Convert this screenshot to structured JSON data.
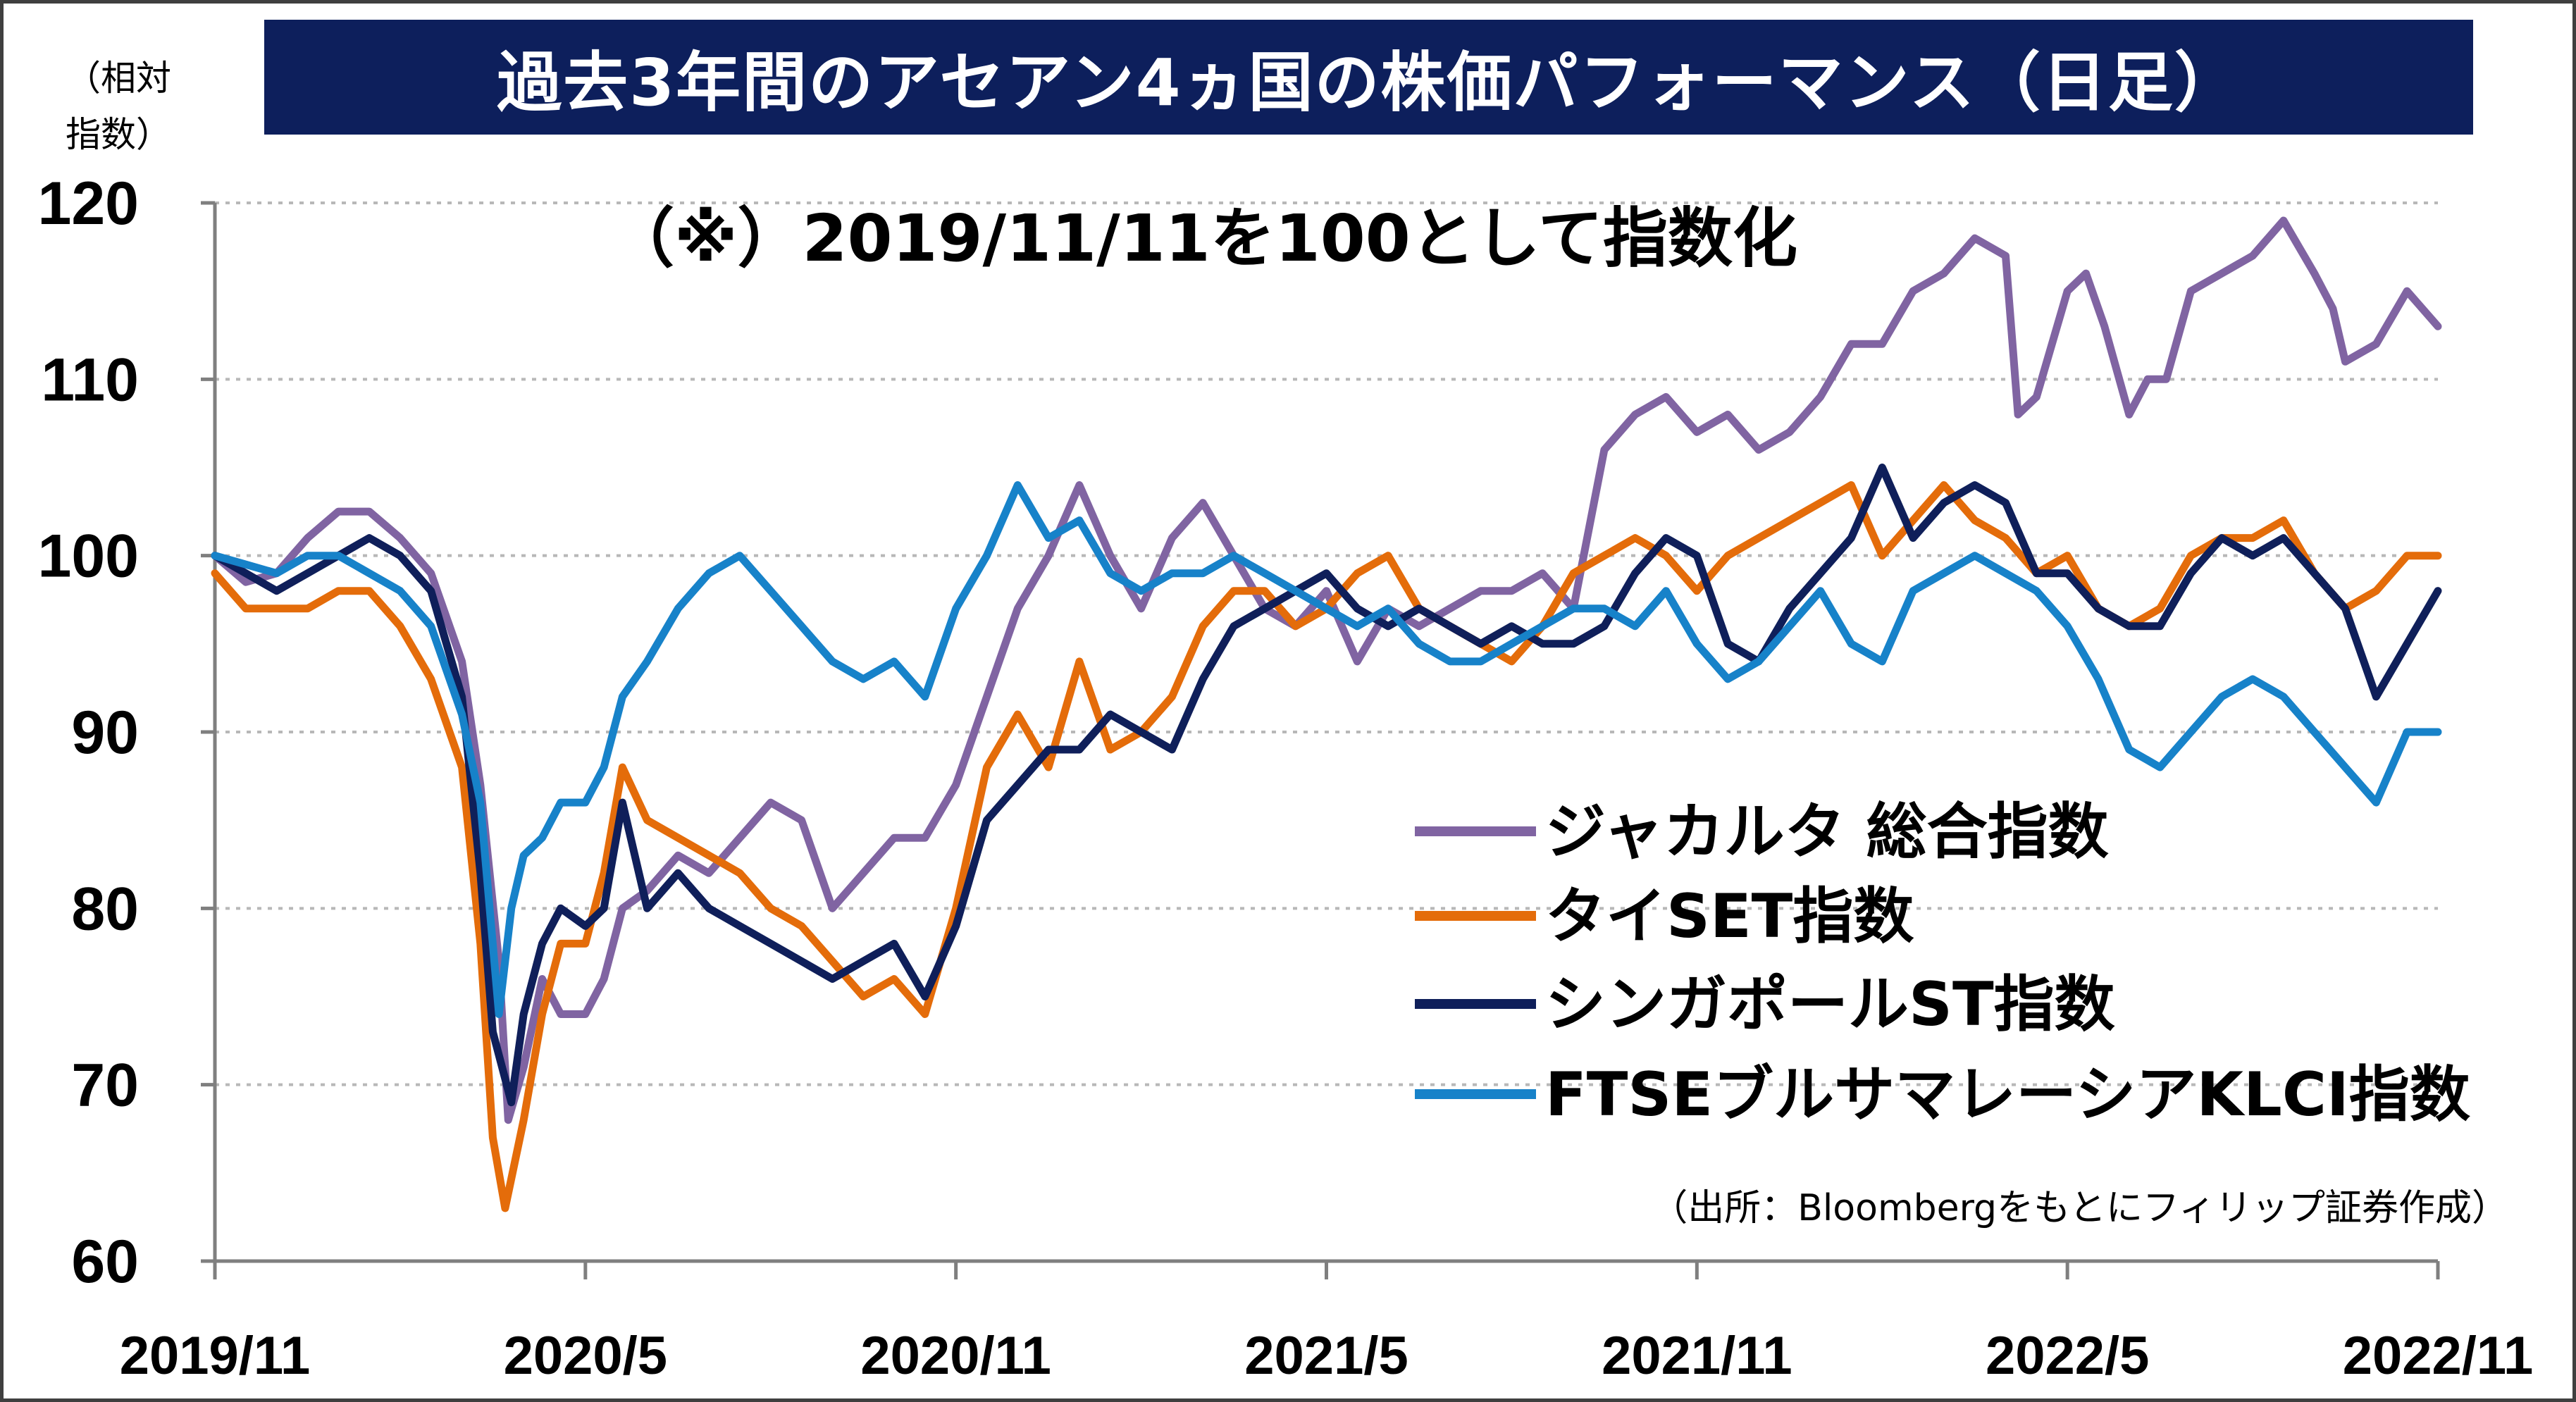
{
  "chart_data": {
    "type": "line",
    "title": "過去3年間のアセアン4ヵ国の株価パフォーマンス（日足）",
    "subtitle": "（※）2019/11/11を100として指数化",
    "ylabel": "（相対指数）",
    "ylabel_lines": [
      "（相対",
      "指数）"
    ],
    "source": "（出所：Bloombergをもとにフィリップ証券作成）",
    "ylim": [
      60,
      120
    ],
    "y_ticks": [
      "120",
      "110",
      "100",
      "90",
      "80",
      "70",
      "60"
    ],
    "x_ticks": [
      "2019/11",
      "2020/5",
      "2020/11",
      "2021/5",
      "2021/11",
      "2022/5",
      "2022/11"
    ],
    "x_tick_months": [
      0,
      6,
      12,
      18,
      24,
      30,
      36
    ],
    "grid": true,
    "legend_position": "lower-right",
    "series": [
      {
        "name": "ジャカルタ 総合指数",
        "color": "#8064a2",
        "points": [
          [
            0,
            100
          ],
          [
            0.5,
            98.5
          ],
          [
            1,
            99
          ],
          [
            1.5,
            101
          ],
          [
            2,
            102.5
          ],
          [
            2.5,
            102.5
          ],
          [
            3,
            101
          ],
          [
            3.5,
            99
          ],
          [
            4,
            94
          ],
          [
            4.3,
            87
          ],
          [
            4.6,
            77
          ],
          [
            4.75,
            68
          ],
          [
            5,
            71
          ],
          [
            5.3,
            76
          ],
          [
            5.6,
            74
          ],
          [
            6,
            74
          ],
          [
            6.3,
            76
          ],
          [
            6.6,
            80
          ],
          [
            7,
            81
          ],
          [
            7.5,
            83
          ],
          [
            8,
            82
          ],
          [
            8.5,
            84
          ],
          [
            9,
            86
          ],
          [
            9.5,
            85
          ],
          [
            10,
            80
          ],
          [
            10.5,
            82
          ],
          [
            11,
            84
          ],
          [
            11.5,
            84
          ],
          [
            12,
            87
          ],
          [
            12.5,
            92
          ],
          [
            13,
            97
          ],
          [
            13.5,
            100
          ],
          [
            14,
            104
          ],
          [
            14.5,
            100
          ],
          [
            15,
            97
          ],
          [
            15.5,
            101
          ],
          [
            16,
            103
          ],
          [
            16.5,
            100
          ],
          [
            17,
            97
          ],
          [
            17.5,
            96
          ],
          [
            18,
            98
          ],
          [
            18.5,
            94
          ],
          [
            19,
            97
          ],
          [
            19.5,
            96
          ],
          [
            20,
            97
          ],
          [
            20.5,
            98
          ],
          [
            21,
            98
          ],
          [
            21.5,
            99
          ],
          [
            22,
            97
          ],
          [
            22.5,
            106
          ],
          [
            23,
            108
          ],
          [
            23.5,
            109
          ],
          [
            24,
            107
          ],
          [
            24.5,
            108
          ],
          [
            25,
            106
          ],
          [
            25.5,
            107
          ],
          [
            26,
            109
          ],
          [
            26.5,
            112
          ],
          [
            27,
            112
          ],
          [
            27.5,
            115
          ],
          [
            28,
            116
          ],
          [
            28.5,
            118
          ],
          [
            29,
            117
          ],
          [
            29.2,
            108
          ],
          [
            29.5,
            109
          ],
          [
            30,
            115
          ],
          [
            30.3,
            116
          ],
          [
            30.6,
            113
          ],
          [
            31,
            108
          ],
          [
            31.3,
            110
          ],
          [
            31.6,
            110
          ],
          [
            32,
            115
          ],
          [
            32.5,
            116
          ],
          [
            33,
            117
          ],
          [
            33.5,
            119
          ],
          [
            34,
            116
          ],
          [
            34.3,
            114
          ],
          [
            34.5,
            111
          ],
          [
            35,
            112
          ],
          [
            35.5,
            115
          ],
          [
            36,
            113
          ]
        ]
      },
      {
        "name": "タイSET指数",
        "color": "#e46c0a",
        "points": [
          [
            0,
            99
          ],
          [
            0.5,
            97
          ],
          [
            1,
            97
          ],
          [
            1.5,
            97
          ],
          [
            2,
            98
          ],
          [
            2.5,
            98
          ],
          [
            3,
            96
          ],
          [
            3.5,
            93
          ],
          [
            4,
            88
          ],
          [
            4.3,
            78
          ],
          [
            4.5,
            67
          ],
          [
            4.7,
            63
          ],
          [
            5,
            68
          ],
          [
            5.3,
            74
          ],
          [
            5.6,
            78
          ],
          [
            6,
            78
          ],
          [
            6.3,
            82
          ],
          [
            6.6,
            88
          ],
          [
            7,
            85
          ],
          [
            7.5,
            84
          ],
          [
            8,
            83
          ],
          [
            8.5,
            82
          ],
          [
            9,
            80
          ],
          [
            9.5,
            79
          ],
          [
            10,
            77
          ],
          [
            10.5,
            75
          ],
          [
            11,
            76
          ],
          [
            11.5,
            74
          ],
          [
            12,
            80
          ],
          [
            12.5,
            88
          ],
          [
            13,
            91
          ],
          [
            13.5,
            88
          ],
          [
            14,
            94
          ],
          [
            14.5,
            89
          ],
          [
            15,
            90
          ],
          [
            15.5,
            92
          ],
          [
            16,
            96
          ],
          [
            16.5,
            98
          ],
          [
            17,
            98
          ],
          [
            17.5,
            96
          ],
          [
            18,
            97
          ],
          [
            18.5,
            99
          ],
          [
            19,
            100
          ],
          [
            19.5,
            97
          ],
          [
            20,
            96
          ],
          [
            20.5,
            95
          ],
          [
            21,
            94
          ],
          [
            21.5,
            96
          ],
          [
            22,
            99
          ],
          [
            22.5,
            100
          ],
          [
            23,
            101
          ],
          [
            23.5,
            100
          ],
          [
            24,
            98
          ],
          [
            24.5,
            100
          ],
          [
            25,
            101
          ],
          [
            25.5,
            102
          ],
          [
            26,
            103
          ],
          [
            26.5,
            104
          ],
          [
            27,
            100
          ],
          [
            27.5,
            102
          ],
          [
            28,
            104
          ],
          [
            28.5,
            102
          ],
          [
            29,
            101
          ],
          [
            29.5,
            99
          ],
          [
            30,
            100
          ],
          [
            30.5,
            97
          ],
          [
            31,
            96
          ],
          [
            31.5,
            97
          ],
          [
            32,
            100
          ],
          [
            32.5,
            101
          ],
          [
            33,
            101
          ],
          [
            33.5,
            102
          ],
          [
            34,
            99
          ],
          [
            34.5,
            97
          ],
          [
            35,
            98
          ],
          [
            35.5,
            100
          ],
          [
            36,
            100
          ]
        ]
      },
      {
        "name": "シンガポールST指数",
        "color": "#0f1f5a",
        "points": [
          [
            0,
            100
          ],
          [
            0.5,
            99
          ],
          [
            1,
            98
          ],
          [
            1.5,
            99
          ],
          [
            2,
            100
          ],
          [
            2.5,
            101
          ],
          [
            3,
            100
          ],
          [
            3.5,
            98
          ],
          [
            4,
            92
          ],
          [
            4.3,
            82
          ],
          [
            4.5,
            73
          ],
          [
            4.8,
            69
          ],
          [
            5,
            74
          ],
          [
            5.3,
            78
          ],
          [
            5.6,
            80
          ],
          [
            6,
            79
          ],
          [
            6.3,
            80
          ],
          [
            6.6,
            86
          ],
          [
            7,
            80
          ],
          [
            7.5,
            82
          ],
          [
            8,
            80
          ],
          [
            8.5,
            79
          ],
          [
            9,
            78
          ],
          [
            9.5,
            77
          ],
          [
            10,
            76
          ],
          [
            10.5,
            77
          ],
          [
            11,
            78
          ],
          [
            11.5,
            75
          ],
          [
            12,
            79
          ],
          [
            12.5,
            85
          ],
          [
            13,
            87
          ],
          [
            13.5,
            89
          ],
          [
            14,
            89
          ],
          [
            14.5,
            91
          ],
          [
            15,
            90
          ],
          [
            15.5,
            89
          ],
          [
            16,
            93
          ],
          [
            16.5,
            96
          ],
          [
            17,
            97
          ],
          [
            17.5,
            98
          ],
          [
            18,
            99
          ],
          [
            18.5,
            97
          ],
          [
            19,
            96
          ],
          [
            19.5,
            97
          ],
          [
            20,
            96
          ],
          [
            20.5,
            95
          ],
          [
            21,
            96
          ],
          [
            21.5,
            95
          ],
          [
            22,
            95
          ],
          [
            22.5,
            96
          ],
          [
            23,
            99
          ],
          [
            23.5,
            101
          ],
          [
            24,
            100
          ],
          [
            24.5,
            95
          ],
          [
            25,
            94
          ],
          [
            25.5,
            97
          ],
          [
            26,
            99
          ],
          [
            26.5,
            101
          ],
          [
            27,
            105
          ],
          [
            27.5,
            101
          ],
          [
            28,
            103
          ],
          [
            28.5,
            104
          ],
          [
            29,
            103
          ],
          [
            29.5,
            99
          ],
          [
            30,
            99
          ],
          [
            30.5,
            97
          ],
          [
            31,
            96
          ],
          [
            31.5,
            96
          ],
          [
            32,
            99
          ],
          [
            32.5,
            101
          ],
          [
            33,
            100
          ],
          [
            33.5,
            101
          ],
          [
            34,
            99
          ],
          [
            34.5,
            97
          ],
          [
            35,
            92
          ],
          [
            35.5,
            95
          ],
          [
            36,
            98
          ]
        ]
      },
      {
        "name": "FTSEブルサマレーシアKLCI指数",
        "color": "#1782c9",
        "points": [
          [
            0,
            100
          ],
          [
            0.5,
            99.5
          ],
          [
            1,
            99
          ],
          [
            1.5,
            100
          ],
          [
            2,
            100
          ],
          [
            2.5,
            99
          ],
          [
            3,
            98
          ],
          [
            3.5,
            96
          ],
          [
            4,
            91
          ],
          [
            4.3,
            86
          ],
          [
            4.6,
            74
          ],
          [
            4.8,
            80
          ],
          [
            5,
            83
          ],
          [
            5.3,
            84
          ],
          [
            5.6,
            86
          ],
          [
            6,
            86
          ],
          [
            6.3,
            88
          ],
          [
            6.6,
            92
          ],
          [
            7,
            94
          ],
          [
            7.5,
            97
          ],
          [
            8,
            99
          ],
          [
            8.5,
            100
          ],
          [
            9,
            98
          ],
          [
            9.5,
            96
          ],
          [
            10,
            94
          ],
          [
            10.5,
            93
          ],
          [
            11,
            94
          ],
          [
            11.5,
            92
          ],
          [
            12,
            97
          ],
          [
            12.5,
            100
          ],
          [
            13,
            104
          ],
          [
            13.5,
            101
          ],
          [
            14,
            102
          ],
          [
            14.5,
            99
          ],
          [
            15,
            98
          ],
          [
            15.5,
            99
          ],
          [
            16,
            99
          ],
          [
            16.5,
            100
          ],
          [
            17,
            99
          ],
          [
            17.5,
            98
          ],
          [
            18,
            97
          ],
          [
            18.5,
            96
          ],
          [
            19,
            97
          ],
          [
            19.5,
            95
          ],
          [
            20,
            94
          ],
          [
            20.5,
            94
          ],
          [
            21,
            95
          ],
          [
            21.5,
            96
          ],
          [
            22,
            97
          ],
          [
            22.5,
            97
          ],
          [
            23,
            96
          ],
          [
            23.5,
            98
          ],
          [
            24,
            95
          ],
          [
            24.5,
            93
          ],
          [
            25,
            94
          ],
          [
            25.5,
            96
          ],
          [
            26,
            98
          ],
          [
            26.5,
            95
          ],
          [
            27,
            94
          ],
          [
            27.5,
            98
          ],
          [
            28,
            99
          ],
          [
            28.5,
            100
          ],
          [
            29,
            99
          ],
          [
            29.5,
            98
          ],
          [
            30,
            96
          ],
          [
            30.5,
            93
          ],
          [
            31,
            89
          ],
          [
            31.5,
            88
          ],
          [
            32,
            90
          ],
          [
            32.5,
            92
          ],
          [
            33,
            93
          ],
          [
            33.5,
            92
          ],
          [
            34,
            90
          ],
          [
            34.5,
            88
          ],
          [
            35,
            86
          ],
          [
            35.5,
            90
          ],
          [
            36,
            90
          ]
        ]
      }
    ]
  }
}
